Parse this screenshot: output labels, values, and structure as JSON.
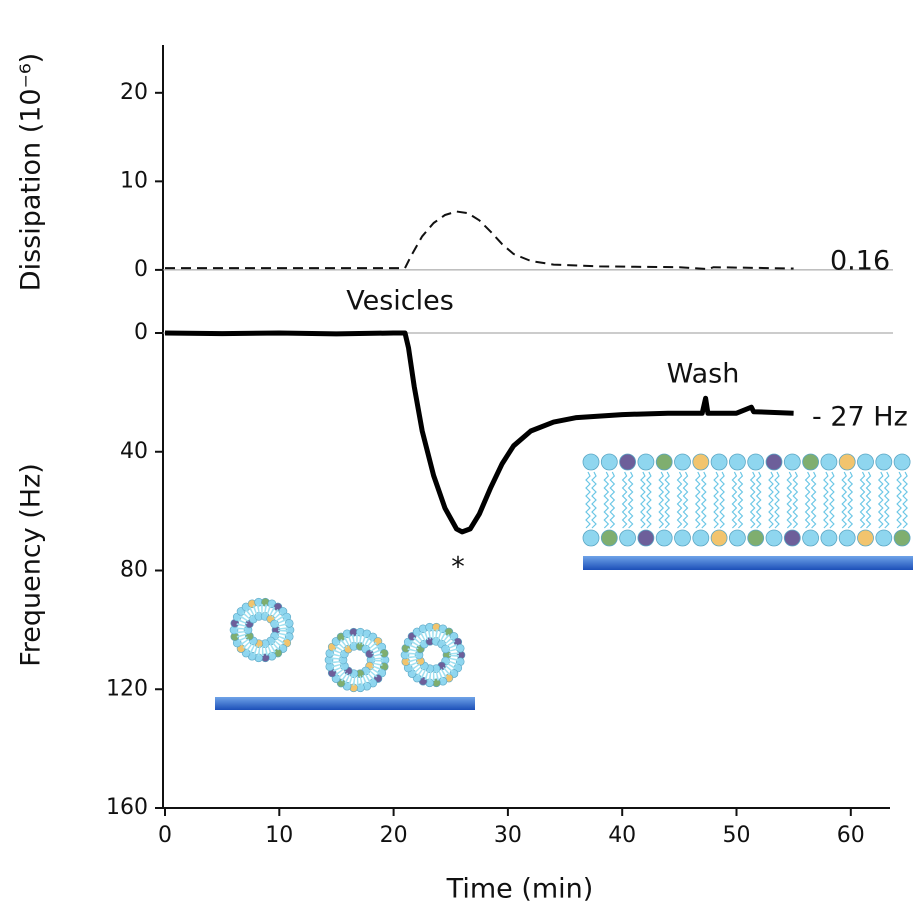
{
  "chart_data": [
    {
      "type": "line",
      "ylabel": "Dissipation (10⁻⁶)",
      "line_style": "dashed",
      "color": "#111111",
      "x": [
        0,
        10,
        20,
        21,
        21.5,
        22.5,
        23.5,
        24.5,
        25.5,
        26.5,
        27.5,
        28.5,
        29.5,
        30.5,
        32,
        34,
        38,
        45,
        47.5,
        48,
        55
      ],
      "values": [
        0.2,
        0.2,
        0.2,
        0.2,
        1.5,
        3.8,
        5.3,
        6.2,
        6.6,
        6.4,
        5.6,
        4.3,
        2.9,
        1.8,
        1.0,
        0.6,
        0.4,
        0.3,
        0.1,
        0.3,
        0.16
      ],
      "xlim": [
        0,
        63.5
      ],
      "ylim": [
        -3.4,
        25.4
      ],
      "yticks": [
        0,
        10,
        20
      ],
      "annotations": [
        "0.16"
      ]
    },
    {
      "type": "line",
      "xlabel": "Time (min)",
      "ylabel": "Frequency (Hz)",
      "line_style": "solid",
      "color": "#000000",
      "inverted": true,
      "x": [
        0,
        5,
        10,
        15,
        20,
        21,
        21.3,
        21.8,
        22.5,
        23.5,
        24.5,
        25.5,
        26,
        26.7,
        27.5,
        28.5,
        29.5,
        30.5,
        32,
        34,
        36,
        38,
        40,
        44,
        47,
        47.3,
        47.5,
        50,
        51.3,
        51.5,
        55
      ],
      "values": [
        0,
        0.2,
        0,
        0.3,
        0,
        0,
        5,
        18,
        33,
        48,
        59,
        66,
        67,
        66,
        61,
        52,
        44,
        38,
        33,
        30,
        28.5,
        28,
        27.5,
        27,
        27,
        22,
        27,
        27,
        25,
        26.5,
        27
      ],
      "xlim": [
        0,
        63.5
      ],
      "ylim": [
        0,
        160
      ],
      "xticks": [
        0,
        10,
        20,
        30,
        40,
        50,
        60
      ],
      "yticks": [
        0,
        40,
        80,
        120,
        160
      ],
      "annotations": [
        "Vesicles",
        "Wash",
        "*",
        "- 27 Hz"
      ]
    }
  ]
}
